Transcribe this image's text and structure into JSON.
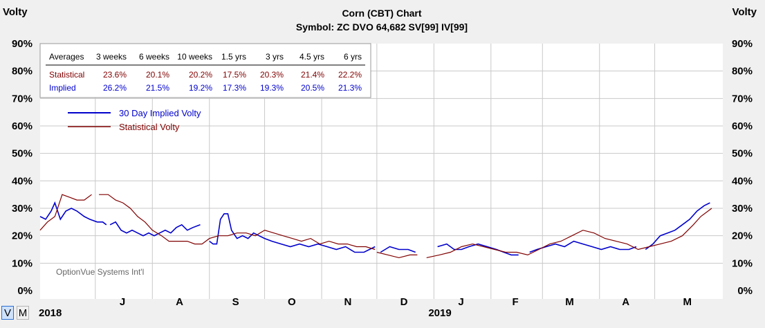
{
  "chart_data": {
    "type": "line",
    "title": "Corn (CBT) Chart",
    "subtitle": "Symbol: ZC  DVO 64,682  SV[99]  IV[99]",
    "ylabel_left": "Volty",
    "ylabel_right": "Volty",
    "ylim": [
      0,
      90
    ],
    "yticks": [
      "0%",
      "10%",
      "20%",
      "30%",
      "40%",
      "50%",
      "60%",
      "70%",
      "80%",
      "90%"
    ],
    "ytick_values": [
      0,
      10,
      20,
      30,
      40,
      50,
      60,
      70,
      80,
      90
    ],
    "xlim": [
      "2018-06-01",
      "2019-06-07"
    ],
    "months": [
      {
        "label": "J",
        "date": "2018-07-01",
        "x": 0.0
      },
      {
        "label": "A",
        "date": "2018-08-01",
        "x": 0.0
      },
      {
        "label": "S",
        "date": "2018-09-01",
        "x": 0.0
      },
      {
        "label": "O",
        "date": "2018-10-01",
        "x": 0.0
      },
      {
        "label": "N",
        "date": "2018-11-01",
        "x": 0.0
      },
      {
        "label": "D",
        "date": "2018-12-01",
        "x": 0.0
      },
      {
        "label": "J",
        "date": "2019-01-01",
        "x": 0.0
      },
      {
        "label": "F",
        "date": "2019-02-01",
        "x": 0.0
      },
      {
        "label": "M",
        "date": "2019-03-01",
        "x": 0.0
      },
      {
        "label": "A",
        "date": "2019-04-01",
        "x": 0.0
      },
      {
        "label": "M",
        "date": "2019-05-01",
        "x": 0.0
      }
    ],
    "years": [
      {
        "label": "2018",
        "date": "2018-06-01"
      },
      {
        "label": "2019",
        "date": "2019-01-01"
      }
    ],
    "grid": true,
    "legend_position": "top-left",
    "series": [
      {
        "name": "30 Day Implied Volty",
        "color": "#0000cc",
        "points": [
          [
            "2018-06-01",
            27
          ],
          [
            "2018-06-04",
            26
          ],
          [
            "2018-06-07",
            29
          ],
          [
            "2018-06-09",
            32
          ],
          [
            "2018-06-12",
            26
          ],
          [
            "2018-06-15",
            29
          ],
          [
            "2018-06-18",
            30
          ],
          [
            "2018-06-21",
            29
          ],
          [
            "2018-06-25",
            27
          ],
          [
            "2018-06-28",
            26
          ],
          [
            "2018-07-02",
            25
          ],
          [
            "2018-07-05",
            25
          ],
          [
            "2018-07-07",
            24
          ],
          null,
          [
            "2018-07-09",
            24
          ],
          [
            "2018-07-12",
            25
          ],
          [
            "2018-07-15",
            22
          ],
          [
            "2018-07-18",
            21
          ],
          [
            "2018-07-21",
            22
          ],
          [
            "2018-07-24",
            21
          ],
          [
            "2018-07-27",
            20
          ],
          [
            "2018-07-30",
            21
          ],
          [
            "2018-08-02",
            20
          ],
          [
            "2018-08-05",
            21
          ],
          [
            "2018-08-08",
            22
          ],
          [
            "2018-08-11",
            21
          ],
          [
            "2018-08-14",
            23
          ],
          [
            "2018-08-17",
            24
          ],
          [
            "2018-08-20",
            22
          ],
          [
            "2018-08-23",
            23
          ],
          [
            "2018-08-27",
            24
          ],
          null,
          [
            "2018-09-01",
            18
          ],
          [
            "2018-09-03",
            17
          ],
          [
            "2018-09-05",
            17
          ],
          [
            "2018-09-07",
            26
          ],
          [
            "2018-09-09",
            28
          ],
          [
            "2018-09-11",
            28
          ],
          [
            "2018-09-13",
            22
          ],
          [
            "2018-09-16",
            19
          ],
          [
            "2018-09-19",
            20
          ],
          [
            "2018-09-22",
            19
          ],
          [
            "2018-09-25",
            21
          ],
          [
            "2018-09-28",
            20
          ],
          [
            "2018-10-01",
            19
          ],
          [
            "2018-10-05",
            18
          ],
          [
            "2018-10-10",
            17
          ],
          [
            "2018-10-15",
            16
          ],
          [
            "2018-10-20",
            17
          ],
          [
            "2018-10-25",
            16
          ],
          [
            "2018-10-30",
            17
          ],
          [
            "2018-11-04",
            16
          ],
          [
            "2018-11-09",
            15
          ],
          [
            "2018-11-14",
            16
          ],
          [
            "2018-11-19",
            14
          ],
          [
            "2018-11-24",
            14
          ],
          [
            "2018-11-30",
            16
          ],
          null,
          [
            "2018-12-03",
            14
          ],
          [
            "2018-12-08",
            16
          ],
          [
            "2018-12-13",
            15
          ],
          [
            "2018-12-18",
            15
          ],
          [
            "2018-12-22",
            14
          ],
          null,
          [
            "2019-01-03",
            16
          ],
          [
            "2019-01-08",
            17
          ],
          [
            "2019-01-12",
            15
          ],
          [
            "2019-01-16",
            15
          ],
          [
            "2019-01-20",
            16
          ],
          [
            "2019-01-25",
            17
          ],
          [
            "2019-01-30",
            16
          ],
          [
            "2019-02-04",
            15
          ],
          [
            "2019-02-08",
            14
          ],
          [
            "2019-02-12",
            13
          ],
          [
            "2019-02-16",
            13
          ],
          null,
          [
            "2019-02-22",
            14
          ],
          [
            "2019-02-26",
            15
          ],
          [
            "2019-03-03",
            16
          ],
          [
            "2019-03-08",
            17
          ],
          [
            "2019-03-13",
            16
          ],
          [
            "2019-03-18",
            18
          ],
          [
            "2019-03-23",
            17
          ],
          [
            "2019-03-28",
            16
          ],
          [
            "2019-04-02",
            15
          ],
          [
            "2019-04-07",
            16
          ],
          [
            "2019-04-12",
            15
          ],
          [
            "2019-04-17",
            15
          ],
          [
            "2019-04-21",
            16
          ],
          null,
          [
            "2019-04-26",
            15
          ],
          [
            "2019-04-30",
            17
          ],
          [
            "2019-05-04",
            20
          ],
          [
            "2019-05-08",
            21
          ],
          [
            "2019-05-12",
            22
          ],
          [
            "2019-05-16",
            24
          ],
          [
            "2019-05-20",
            26
          ],
          [
            "2019-05-24",
            29
          ],
          [
            "2019-05-28",
            31
          ],
          [
            "2019-05-31",
            32
          ]
        ]
      },
      {
        "name": "Statistical Volty",
        "color": "#800000",
        "points": [
          [
            "2018-06-01",
            22
          ],
          [
            "2018-06-05",
            25
          ],
          [
            "2018-06-09",
            27
          ],
          [
            "2018-06-13",
            35
          ],
          [
            "2018-06-17",
            34
          ],
          [
            "2018-06-21",
            33
          ],
          [
            "2018-06-25",
            33
          ],
          [
            "2018-06-29",
            35
          ],
          null,
          [
            "2018-07-03",
            35
          ],
          [
            "2018-07-08",
            35
          ],
          [
            "2018-07-12",
            33
          ],
          [
            "2018-07-16",
            32
          ],
          [
            "2018-07-20",
            30
          ],
          [
            "2018-07-24",
            27
          ],
          [
            "2018-07-28",
            25
          ],
          [
            "2018-08-01",
            22
          ],
          [
            "2018-08-06",
            20
          ],
          [
            "2018-08-10",
            18
          ],
          [
            "2018-08-15",
            18
          ],
          [
            "2018-08-20",
            18
          ],
          [
            "2018-08-24",
            17
          ],
          [
            "2018-08-28",
            17
          ],
          [
            "2018-09-01",
            19
          ],
          [
            "2018-09-06",
            20
          ],
          [
            "2018-09-11",
            20
          ],
          [
            "2018-09-16",
            21
          ],
          [
            "2018-09-21",
            21
          ],
          [
            "2018-09-26",
            20
          ],
          [
            "2018-10-01",
            22
          ],
          [
            "2018-10-06",
            21
          ],
          [
            "2018-10-11",
            20
          ],
          [
            "2018-10-16",
            19
          ],
          [
            "2018-10-21",
            18
          ],
          [
            "2018-10-26",
            19
          ],
          [
            "2018-10-31",
            17
          ],
          [
            "2018-11-05",
            18
          ],
          [
            "2018-11-10",
            17
          ],
          [
            "2018-11-15",
            17
          ],
          [
            "2018-11-20",
            16
          ],
          [
            "2018-11-25",
            16
          ],
          [
            "2018-11-30",
            15
          ],
          null,
          [
            "2018-12-01",
            14
          ],
          [
            "2018-12-07",
            13
          ],
          [
            "2018-12-13",
            12
          ],
          [
            "2018-12-19",
            13
          ],
          [
            "2018-12-23",
            13
          ],
          null,
          [
            "2018-12-28",
            12
          ],
          [
            "2019-01-04",
            13
          ],
          [
            "2019-01-10",
            14
          ],
          [
            "2019-01-16",
            16
          ],
          [
            "2019-01-22",
            17
          ],
          [
            "2019-01-28",
            16
          ],
          [
            "2019-02-03",
            15
          ],
          [
            "2019-02-09",
            14
          ],
          [
            "2019-02-15",
            14
          ],
          [
            "2019-02-21",
            13
          ],
          [
            "2019-02-27",
            15
          ],
          [
            "2019-03-05",
            17
          ],
          [
            "2019-03-11",
            18
          ],
          [
            "2019-03-17",
            20
          ],
          [
            "2019-03-23",
            22
          ],
          [
            "2019-03-29",
            21
          ],
          [
            "2019-04-04",
            19
          ],
          [
            "2019-04-10",
            18
          ],
          [
            "2019-04-16",
            17
          ],
          [
            "2019-04-22",
            15
          ],
          [
            "2019-04-28",
            16
          ],
          [
            "2019-05-04",
            17
          ],
          [
            "2019-05-10",
            18
          ],
          [
            "2019-05-16",
            20
          ],
          [
            "2019-05-22",
            24
          ],
          [
            "2019-05-26",
            27
          ],
          [
            "2019-05-30",
            29
          ],
          [
            "2019-06-01",
            30
          ]
        ]
      }
    ],
    "averages_table": {
      "header": [
        "Averages",
        "3 weeks",
        "6 weeks",
        "10 weeks",
        "1.5 yrs",
        "3 yrs",
        "4.5 yrs",
        "6 yrs"
      ],
      "rows": [
        {
          "label": "Statistical",
          "color": "#800000",
          "values": [
            "23.6%",
            "20.1%",
            "20.2%",
            "17.5%",
            "20.3%",
            "21.4%",
            "22.2%"
          ]
        },
        {
          "label": "Implied",
          "color": "#0000cc",
          "values": [
            "26.2%",
            "21.5%",
            "19.2%",
            "17.3%",
            "19.3%",
            "20.5%",
            "21.3%"
          ]
        }
      ]
    },
    "watermark": "OptionVue Systems Int'l"
  },
  "controls": {
    "v_label": "V",
    "m_label": "M"
  }
}
